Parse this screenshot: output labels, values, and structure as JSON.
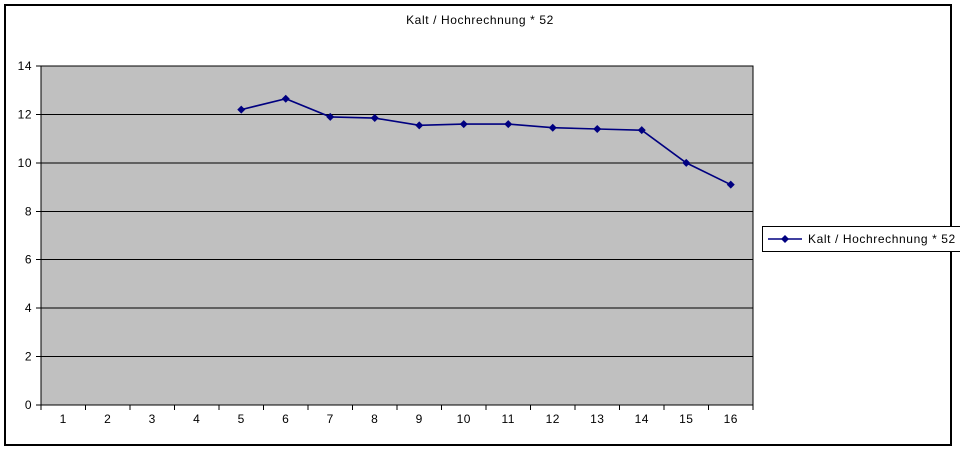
{
  "chart": {
    "title": "Kalt / Hochrechnung * 52",
    "legend": {
      "label": "Kalt / Hochrechnung * 52"
    }
  },
  "chart_data": {
    "type": "line",
    "title": "Kalt / Hochrechnung * 52",
    "x": [
      "1",
      "2",
      "3",
      "4",
      "5",
      "6",
      "7",
      "8",
      "9",
      "10",
      "11",
      "12",
      "13",
      "14",
      "15",
      "16"
    ],
    "series": [
      {
        "name": "Kalt / Hochrechnung * 52",
        "marker": "diamond",
        "values": [
          null,
          null,
          null,
          null,
          12.2,
          12.65,
          11.9,
          11.85,
          11.55,
          11.6,
          11.6,
          11.45,
          11.4,
          11.35,
          10.0,
          9.1
        ]
      }
    ],
    "xlabel": "",
    "ylabel": "",
    "ylim": [
      0,
      14
    ],
    "y_ticks": [
      0,
      2,
      4,
      6,
      8,
      10,
      12,
      14
    ],
    "grid": true,
    "legend_position": "right",
    "colors": {
      "series": "#000080",
      "plot_bg": "#c0c0c0",
      "grid": "#000000",
      "axis": "#000000",
      "text": "#000000",
      "frame": "#000000"
    }
  }
}
